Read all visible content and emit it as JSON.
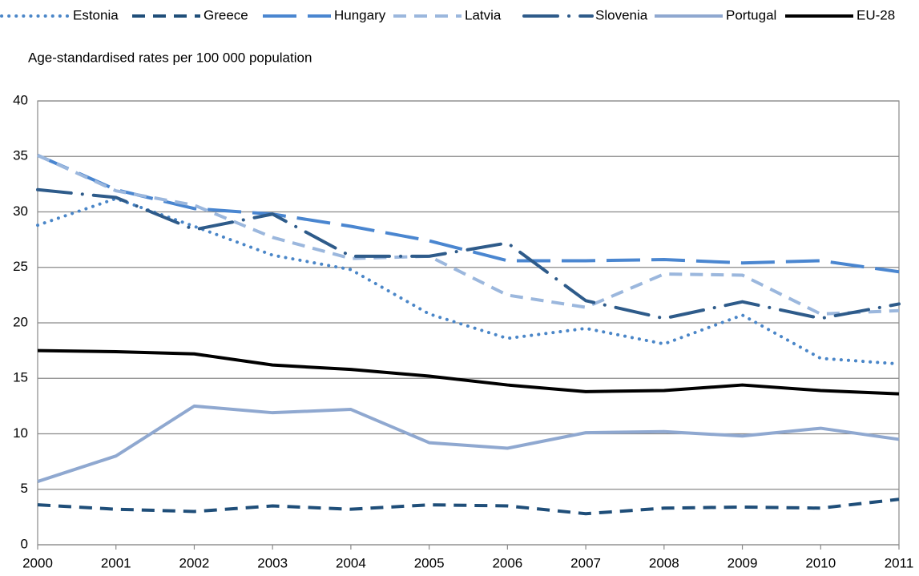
{
  "chart_data": {
    "type": "line",
    "y_label": "Age-standardised rates per 100 000 population",
    "x": [
      2000,
      2001,
      2002,
      2003,
      2004,
      2005,
      2006,
      2007,
      2008,
      2009,
      2010,
      2011
    ],
    "xlim": [
      2000,
      2011
    ],
    "xticks": [
      2000,
      2001,
      2002,
      2003,
      2004,
      2005,
      2006,
      2007,
      2008,
      2009,
      2010,
      2011
    ],
    "ylim": [
      0,
      40
    ],
    "yticks": [
      0,
      5,
      10,
      15,
      20,
      25,
      30,
      35,
      40
    ],
    "grid": true,
    "legend": "top",
    "series": [
      {
        "name": "Estonia",
        "color": "#4a86c8",
        "dash": "dotted",
        "values": [
          28.8,
          31.2,
          28.7,
          26.1,
          24.8,
          20.8,
          18.6,
          19.5,
          18.1,
          20.7,
          16.8,
          16.3
        ]
      },
      {
        "name": "Greece",
        "color": "#1f4e79",
        "dash": "dashed",
        "values": [
          3.6,
          3.2,
          3.0,
          3.5,
          3.2,
          3.6,
          3.5,
          2.8,
          3.3,
          3.4,
          3.3,
          4.1
        ]
      },
      {
        "name": "Hungary",
        "color": "#4a86d0",
        "dash": "long-dash",
        "values": [
          35.1,
          32.0,
          30.3,
          29.8,
          28.7,
          27.4,
          25.6,
          25.6,
          25.7,
          25.4,
          25.6,
          24.6
        ]
      },
      {
        "name": "Latvia",
        "color": "#9bb7dd",
        "dash": "dashed",
        "values": [
          35.1,
          31.9,
          30.6,
          27.7,
          25.8,
          26.0,
          22.5,
          21.4,
          24.4,
          24.3,
          20.8,
          21.1
        ]
      },
      {
        "name": "Slovenia",
        "color": "#2e5b8a",
        "dash": "long-dash-dot",
        "values": [
          32.0,
          31.3,
          28.4,
          29.8,
          26.0,
          26.0,
          27.2,
          22.0,
          20.4,
          21.9,
          20.4,
          21.7
        ]
      },
      {
        "name": "Portugal",
        "color": "#8fa8d0",
        "dash": "solid",
        "values": [
          5.7,
          8.0,
          12.5,
          11.9,
          12.2,
          9.2,
          8.7,
          10.1,
          10.2,
          9.8,
          10.5,
          9.5
        ]
      },
      {
        "name": "EU-28",
        "color": "#000000",
        "dash": "solid",
        "values": [
          17.5,
          17.4,
          17.2,
          16.2,
          15.8,
          15.2,
          14.4,
          13.8,
          13.9,
          14.4,
          13.9,
          13.6
        ]
      }
    ]
  }
}
